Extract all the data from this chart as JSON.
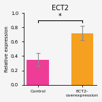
{
  "title": "ECT2",
  "categories": [
    "Control",
    "ECT2-\noverexpression"
  ],
  "values": [
    0.35,
    0.72
  ],
  "errors": [
    0.09,
    0.1
  ],
  "bar_colors": [
    "#ee3d96",
    "#f5a020"
  ],
  "ylabel": "Relative expression",
  "ylim": [
    0,
    1.0
  ],
  "yticks": [
    0.0,
    0.2,
    0.4,
    0.6,
    0.8,
    1.0
  ],
  "background_color": "#f5f5f5",
  "title_fontsize": 7,
  "label_fontsize": 5,
  "tick_fontsize": 5,
  "sig_text": "*",
  "bar_width": 0.5,
  "figsize": [
    1.5,
    1.5
  ],
  "dpi": 100
}
